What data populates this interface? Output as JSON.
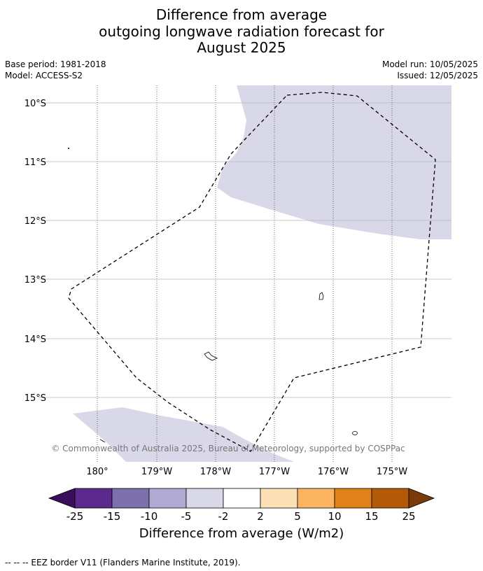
{
  "title": {
    "line1": "Difference from average",
    "line2": "outgoing longwave radiation forecast for",
    "line3": "August 2025"
  },
  "meta": {
    "base_period": "Base period: 1981-2018",
    "model": "Model: ACCESS-S2",
    "model_run": "Model run: 10/05/2025",
    "issued": "Issued: 12/05/2025"
  },
  "map": {
    "lat_labels": [
      "10°S",
      "11°S",
      "12°S",
      "13°S",
      "14°S",
      "15°S"
    ],
    "lon_labels": [
      "180°",
      "179°W",
      "178°W",
      "177°W",
      "176°W",
      "175°W"
    ],
    "copyright": "© Commonwealth of Australia 2025, Bureau of Meteorology, supported by COSPPac",
    "anomaly_fill_color": "#d8d8e8",
    "eez_line_color": "#000000"
  },
  "colorbar": {
    "ticks": [
      "-25",
      "-15",
      "-10",
      "-5",
      "-2",
      "2",
      "5",
      "10",
      "15",
      "25"
    ],
    "colors": [
      "#3b0f5e",
      "#5b2a8c",
      "#7e6fad",
      "#b0aad2",
      "#d8d8e8",
      "#ffffff",
      "#fde0b6",
      "#fbb460",
      "#e0821c",
      "#b35a08",
      "#7a3b09"
    ],
    "label": "Difference from average (W/m2)"
  },
  "footer": {
    "eez_legend": "--  --  -- EEZ border V11 (Flanders Marine Institute, 2019)."
  }
}
